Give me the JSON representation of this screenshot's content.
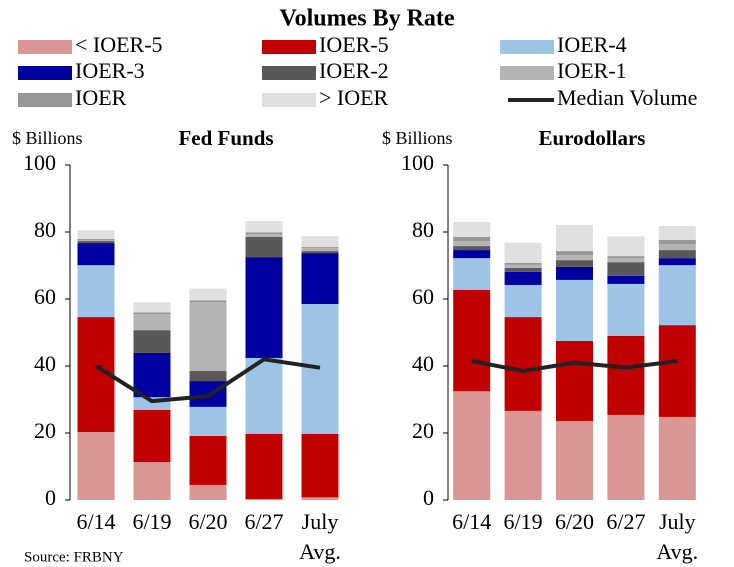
{
  "title": "Volumes By Rate",
  "source": "Source: FRBNY",
  "chart_data": [
    {
      "type": "stacked-bar-line",
      "title": "Fed Funds",
      "ylabel": "$ Billions",
      "categories": [
        "6/14",
        "6/19",
        "6/20",
        "6/27",
        "July Avg."
      ],
      "ylim": [
        0,
        100
      ],
      "yticks": [
        0,
        20,
        40,
        60,
        80,
        100
      ],
      "series": [
        {
          "name": "< IOER-5",
          "color": "#d99694",
          "values": [
            20.3,
            11.3,
            4.5,
            0.3,
            0.8
          ]
        },
        {
          "name": "IOER-5",
          "color": "#c00000",
          "values": [
            34.3,
            15.6,
            14.6,
            19.4,
            18.9
          ]
        },
        {
          "name": "IOER-4",
          "color": "#9dc3e6",
          "values": [
            15.5,
            3.8,
            8.7,
            22.7,
            38.8
          ]
        },
        {
          "name": "IOER-3",
          "color": "#0000a0",
          "values": [
            6.6,
            13.2,
            7.7,
            30.1,
            15.2
          ]
        },
        {
          "name": "IOER-2",
          "color": "#595959",
          "values": [
            0.6,
            6.8,
            3.0,
            6.0,
            0.6
          ]
        },
        {
          "name": "IOER-1",
          "color": "#b4b4b4",
          "values": [
            0.3,
            4.8,
            20.6,
            0.9,
            0.9
          ]
        },
        {
          "name": "IOER",
          "color": "#969696",
          "values": [
            0.3,
            0.5,
            0.5,
            0.5,
            0.3
          ]
        },
        {
          "name": "> IOER",
          "color": "#e0e0e0",
          "values": [
            2.6,
            3.0,
            3.5,
            3.4,
            3.3
          ]
        },
        {
          "name": "Median Volume",
          "color": "#222222",
          "kind": "line",
          "values": [
            40,
            29.5,
            31,
            42,
            39.5
          ]
        }
      ]
    },
    {
      "type": "stacked-bar-line",
      "title": "Eurodollars",
      "ylabel": "$ Billions",
      "categories": [
        "6/14",
        "6/19",
        "6/20",
        "6/27",
        "July Avg."
      ],
      "ylim": [
        0,
        100
      ],
      "yticks": [
        0,
        20,
        40,
        60,
        80,
        100
      ],
      "series": [
        {
          "color": "#d99694",
          "values": [
            32.5,
            26.6,
            23.6,
            25.4,
            24.8
          ]
        },
        {
          "color": "#c00000",
          "values": [
            30.2,
            28.0,
            23.9,
            23.6,
            27.4
          ]
        },
        {
          "color": "#9dc3e6",
          "values": [
            9.5,
            9.6,
            18.2,
            15.5,
            17.9
          ]
        },
        {
          "color": "#0000a0",
          "values": [
            2.4,
            3.9,
            3.9,
            2.4,
            2.1
          ]
        },
        {
          "color": "#595959",
          "values": [
            1.2,
            1.2,
            2.0,
            4.1,
            2.4
          ]
        },
        {
          "color": "#b4b4b4",
          "values": [
            1.5,
            0.9,
            1.5,
            1.2,
            1.8
          ]
        },
        {
          "color": "#969696",
          "values": [
            1.2,
            0.6,
            1.2,
            0.6,
            1.2
          ]
        },
        {
          "color": "#e0e0e0",
          "values": [
            4.5,
            6.0,
            7.8,
            5.9,
            4.2
          ]
        },
        {
          "color": "#222222",
          "kind": "line",
          "values": [
            41.5,
            38.5,
            41,
            39.5,
            41.5
          ]
        }
      ]
    }
  ]
}
